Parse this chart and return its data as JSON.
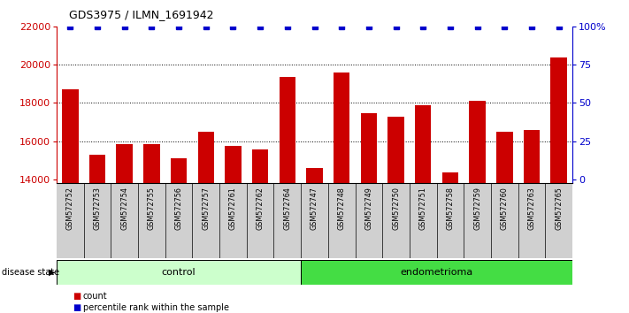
{
  "title": "GDS3975 / ILMN_1691942",
  "samples": [
    "GSM572752",
    "GSM572753",
    "GSM572754",
    "GSM572755",
    "GSM572756",
    "GSM572757",
    "GSM572761",
    "GSM572762",
    "GSM572764",
    "GSM572747",
    "GSM572748",
    "GSM572749",
    "GSM572750",
    "GSM572751",
    "GSM572758",
    "GSM572759",
    "GSM572760",
    "GSM572763",
    "GSM572765"
  ],
  "counts": [
    18700,
    15300,
    15850,
    15850,
    15100,
    16500,
    15750,
    15550,
    19350,
    14600,
    19600,
    17450,
    17300,
    17900,
    14350,
    18100,
    16500,
    16600,
    20400
  ],
  "control_count": 9,
  "endometrioma_count": 10,
  "bar_color": "#cc0000",
  "dot_color": "#0000cc",
  "ymin": 13800,
  "ymax": 22000,
  "yticks_left": [
    14000,
    16000,
    18000,
    20000,
    22000
  ],
  "yticks_right_vals": [
    14000,
    16000,
    18000,
    20000,
    22000
  ],
  "ytick_labels_right": [
    "0",
    "25",
    "50",
    "75",
    "100%"
  ],
  "xtick_bg": "#d0d0d0",
  "control_color": "#ccffcc",
  "endometrioma_color": "#44dd44",
  "disease_label": "disease state",
  "control_label": "control",
  "endometrioma_label": "endometrioma",
  "legend_count": "count",
  "legend_pct": "percentile rank within the sample",
  "grid_yticks": [
    16000,
    18000,
    20000
  ]
}
